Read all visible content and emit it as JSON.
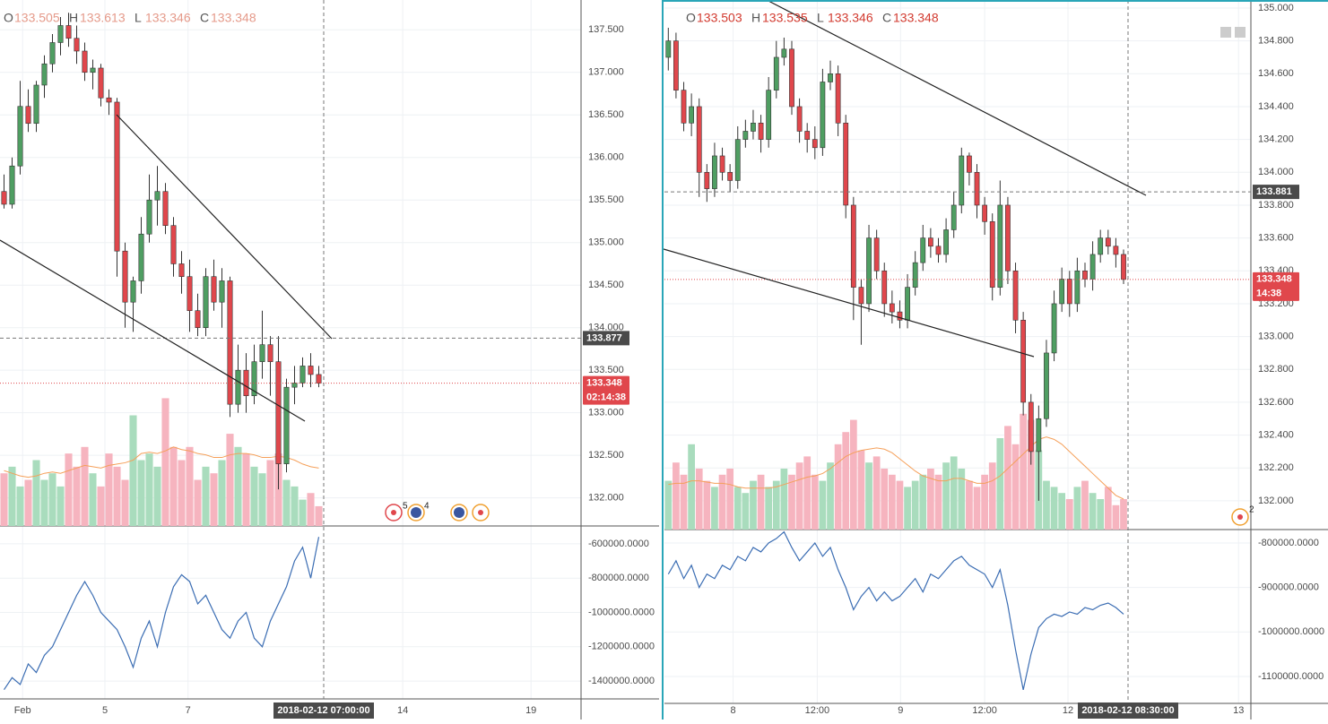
{
  "chart_data": [
    {
      "type": "candlestick",
      "ohlc_header": [
        {
          "label": "O",
          "value": 133.505
        },
        {
          "label": "H",
          "value": 133.613
        },
        {
          "label": "L",
          "value": 133.346
        },
        {
          "label": "C",
          "value": 133.348
        }
      ],
      "xlim": [
        -0.5,
        71.5
      ],
      "xticks": [
        {
          "value": 2.3,
          "label": "Feb"
        },
        {
          "value": 12.5,
          "label": "5"
        },
        {
          "value": 22.8,
          "label": "7"
        },
        {
          "value": 49.4,
          "label": "14"
        },
        {
          "value": 65.3,
          "label": "19"
        }
      ],
      "ylim": [
        131.67,
        137.85
      ],
      "yticks": [
        {
          "value": 132,
          "label": "132.000"
        },
        {
          "value": 132.5,
          "label": "132.500"
        },
        {
          "value": 133,
          "label": "133.000"
        },
        {
          "value": 133.5,
          "label": "133.500"
        },
        {
          "value": 134,
          "label": "134.000"
        },
        {
          "value": 134.5,
          "label": "134.500"
        },
        {
          "value": 135,
          "label": "135.000"
        },
        {
          "value": 135.5,
          "label": "135.500"
        },
        {
          "value": 136,
          "label": "136.000"
        },
        {
          "value": 136.5,
          "label": "136.500"
        },
        {
          "value": 137,
          "label": "137.000"
        },
        {
          "value": 137.5,
          "label": "137.500"
        }
      ],
      "open": [
        135.6,
        135.45,
        135.9,
        136.6,
        136.4,
        136.85,
        137.1,
        137.35,
        137.55,
        137.4,
        137.25,
        137.0,
        137.05,
        136.7,
        136.65,
        134.9,
        134.3,
        134.55,
        135.1,
        135.5,
        135.6,
        135.2,
        134.75,
        134.6,
        134.2,
        134.0,
        134.6,
        134.3,
        134.55,
        133.1,
        133.5,
        133.2,
        133.6,
        133.8,
        133.6,
        132.4,
        133.3,
        133.35,
        133.55,
        133.45
      ],
      "high": [
        135.8,
        136.0,
        136.9,
        136.8,
        136.9,
        137.2,
        137.45,
        137.65,
        137.7,
        137.55,
        137.35,
        137.15,
        137.1,
        136.8,
        136.7,
        135.0,
        134.6,
        135.3,
        135.8,
        135.9,
        135.7,
        135.3,
        134.9,
        134.8,
        134.4,
        134.7,
        134.8,
        134.7,
        134.6,
        133.8,
        133.7,
        133.8,
        134.2,
        133.9,
        133.9,
        133.4,
        133.55,
        133.65,
        133.7,
        133.55
      ],
      "low": [
        135.4,
        135.4,
        135.8,
        136.3,
        136.3,
        136.7,
        137.0,
        137.2,
        137.3,
        137.1,
        136.9,
        136.8,
        136.6,
        136.5,
        134.6,
        134.0,
        133.95,
        134.4,
        135.0,
        135.2,
        135.1,
        134.6,
        134.4,
        133.95,
        133.9,
        133.9,
        134.2,
        134.0,
        132.95,
        133.0,
        133.0,
        133.1,
        133.4,
        133.2,
        132.1,
        132.3,
        133.1,
        133.3,
        133.3,
        133.3
      ],
      "close": [
        135.45,
        135.9,
        136.6,
        136.4,
        136.85,
        137.1,
        137.35,
        137.55,
        137.4,
        137.25,
        137.0,
        137.05,
        136.7,
        136.65,
        134.9,
        134.3,
        134.55,
        135.1,
        135.5,
        135.6,
        135.2,
        134.75,
        134.6,
        134.2,
        134.0,
        134.6,
        134.3,
        134.55,
        133.1,
        133.5,
        133.2,
        133.6,
        133.8,
        133.6,
        132.4,
        133.3,
        133.35,
        133.55,
        133.45,
        133.348
      ],
      "volume_lim": [
        0,
        100
      ],
      "volume": [
        40,
        45,
        30,
        35,
        50,
        35,
        40,
        30,
        55,
        45,
        60,
        40,
        30,
        55,
        45,
        35,
        84,
        50,
        55,
        45,
        97,
        60,
        50,
        60,
        35,
        45,
        40,
        50,
        70,
        60,
        55,
        45,
        40,
        50,
        55,
        35,
        30,
        20,
        25,
        15
      ],
      "volume_ma": [
        42,
        40,
        38,
        37,
        38,
        40,
        41,
        40,
        42,
        44,
        46,
        45,
        44,
        46,
        47,
        48,
        50,
        55,
        56,
        55,
        57,
        60,
        58,
        57,
        55,
        54,
        52,
        52,
        54,
        55,
        55,
        54,
        52,
        52,
        53,
        52,
        50,
        47,
        45,
        44
      ],
      "indicator": {
        "color": "#3b6db3",
        "ylim": [
          -1504000,
          -496000
        ],
        "yticks": [
          {
            "value": -600000,
            "label": "-600000.0000"
          },
          {
            "value": -800000,
            "label": "-800000.0000"
          },
          {
            "value": -1000000,
            "label": "-1000000.0000"
          },
          {
            "value": -1200000,
            "label": "-1200000.0000"
          },
          {
            "value": -1400000,
            "label": "-1400000.0000"
          }
        ],
        "values": [
          -1450000,
          -1380000,
          -1420000,
          -1300000,
          -1350000,
          -1250000,
          -1200000,
          -1100000,
          -1000000,
          -900000,
          -820000,
          -900000,
          -1000000,
          -1050000,
          -1100000,
          -1200000,
          -1320000,
          -1150000,
          -1050000,
          -1200000,
          -1000000,
          -850000,
          -780000,
          -820000,
          -950000,
          -900000,
          -1000000,
          -1100000,
          -1150000,
          -1050000,
          -1000000,
          -1150000,
          -1200000,
          -1050000,
          -950000,
          -850000,
          -700000,
          -620000,
          -800000,
          -560000
        ]
      },
      "crosshair": {
        "price": 133.877,
        "time": "2018-02-12 07:00:00"
      },
      "last_price": {
        "value": 133.348,
        "countdown": "02:14:38"
      },
      "events": [
        5,
        4
      ],
      "colors": {
        "up": "#4f9e62",
        "down": "#e0474c",
        "volume_up": "#a9dcbd",
        "volume_down": "#f6b4bf",
        "volume_ma": "#f5a05a",
        "header": "#e59a8a"
      }
    },
    {
      "type": "candlestick",
      "ohlc_header": [
        {
          "label": "O",
          "value": 133.503
        },
        {
          "label": "H",
          "value": 133.535
        },
        {
          "label": "L",
          "value": 133.346
        },
        {
          "label": "C",
          "value": 133.348
        }
      ],
      "xlim": [
        -0.5,
        75.5
      ],
      "xticks": [
        {
          "value": 8.4,
          "label": "8"
        },
        {
          "value": 19.3,
          "label": "12:00"
        },
        {
          "value": 30.1,
          "label": "9"
        },
        {
          "value": 41.0,
          "label": "12:00"
        },
        {
          "value": 51.8,
          "label": "12"
        },
        {
          "value": 73.9,
          "label": "13"
        }
      ],
      "ylim": [
        131.825,
        135.049
      ],
      "yticks": [
        {
          "value": 132,
          "label": "132.000"
        },
        {
          "value": 132.2,
          "label": "132.200"
        },
        {
          "value": 132.4,
          "label": "132.400"
        },
        {
          "value": 132.6,
          "label": "132.600"
        },
        {
          "value": 132.8,
          "label": "132.800"
        },
        {
          "value": 133,
          "label": "133.000"
        },
        {
          "value": 133.2,
          "label": "133.200"
        },
        {
          "value": 133.4,
          "label": "133.400"
        },
        {
          "value": 133.6,
          "label": "133.600"
        },
        {
          "value": 133.8,
          "label": "133.800"
        },
        {
          "value": 134,
          "label": "134.000"
        },
        {
          "value": 134.2,
          "label": "134.200"
        },
        {
          "value": 134.4,
          "label": "134.400"
        },
        {
          "value": 134.6,
          "label": "134.600"
        },
        {
          "value": 134.8,
          "label": "134.800"
        },
        {
          "value": 135,
          "label": "135.000"
        }
      ],
      "open": [
        134.7,
        134.8,
        134.5,
        134.3,
        134.4,
        134.0,
        133.9,
        134.1,
        134.0,
        133.95,
        134.2,
        134.25,
        134.3,
        134.2,
        134.5,
        134.7,
        134.75,
        134.4,
        134.25,
        134.2,
        134.15,
        134.55,
        134.6,
        134.3,
        133.8,
        133.3,
        133.2,
        133.6,
        133.4,
        133.2,
        133.15,
        133.1,
        133.3,
        133.45,
        133.6,
        133.55,
        133.5,
        133.65,
        133.8,
        134.1,
        134.0,
        133.8,
        133.7,
        133.3,
        133.8,
        133.4,
        133.1,
        132.6,
        132.3,
        132.5,
        132.9,
        133.2,
        133.35,
        133.2,
        133.4,
        133.35,
        133.5,
        133.6,
        133.55,
        133.5
      ],
      "high": [
        134.88,
        134.85,
        134.55,
        134.48,
        134.45,
        134.05,
        134.18,
        134.15,
        134.05,
        134.28,
        134.32,
        134.38,
        134.35,
        134.58,
        134.8,
        134.82,
        134.8,
        134.45,
        134.3,
        134.28,
        134.63,
        134.68,
        134.65,
        134.35,
        133.85,
        133.35,
        133.68,
        133.65,
        133.45,
        133.28,
        133.22,
        133.38,
        133.52,
        133.68,
        133.66,
        133.6,
        133.72,
        133.88,
        134.15,
        134.12,
        134.05,
        133.85,
        133.75,
        133.95,
        133.85,
        133.45,
        133.15,
        132.65,
        132.58,
        132.98,
        133.28,
        133.42,
        133.4,
        133.48,
        133.45,
        133.58,
        133.65,
        133.65,
        133.6,
        133.53
      ],
      "low": [
        134.62,
        134.45,
        134.25,
        134.22,
        133.85,
        133.82,
        133.85,
        133.95,
        133.88,
        133.9,
        134.15,
        134.2,
        134.12,
        134.15,
        134.45,
        134.65,
        134.35,
        134.18,
        134.12,
        134.08,
        134.1,
        134.5,
        134.22,
        133.72,
        133.1,
        132.95,
        133.15,
        133.35,
        133.12,
        133.08,
        133.05,
        133.05,
        133.25,
        133.4,
        133.48,
        133.45,
        133.45,
        133.6,
        133.75,
        133.92,
        133.72,
        133.62,
        133.22,
        133.25,
        133.32,
        133.02,
        132.52,
        132.22,
        132.0,
        132.45,
        132.85,
        133.15,
        133.12,
        133.15,
        133.3,
        133.28,
        133.45,
        133.5,
        133.42,
        133.32
      ],
      "close": [
        134.8,
        134.5,
        134.3,
        134.4,
        134.0,
        133.9,
        134.1,
        134.0,
        133.95,
        134.2,
        134.25,
        134.3,
        134.2,
        134.5,
        134.7,
        134.75,
        134.4,
        134.25,
        134.2,
        134.15,
        134.55,
        134.6,
        134.3,
        133.8,
        133.3,
        133.2,
        133.6,
        133.4,
        133.2,
        133.15,
        133.1,
        133.3,
        133.45,
        133.6,
        133.55,
        133.5,
        133.65,
        133.8,
        134.1,
        134.0,
        133.8,
        133.7,
        133.3,
        133.8,
        133.4,
        133.1,
        132.6,
        132.3,
        132.5,
        132.9,
        133.2,
        133.35,
        133.2,
        133.4,
        133.35,
        133.5,
        133.6,
        133.55,
        133.5,
        133.348
      ],
      "volume_lim": [
        0,
        100
      ],
      "volume": [
        40,
        55,
        45,
        70,
        50,
        40,
        35,
        45,
        50,
        35,
        30,
        40,
        45,
        35,
        40,
        50,
        45,
        55,
        60,
        45,
        40,
        55,
        70,
        80,
        90,
        65,
        55,
        60,
        50,
        45,
        40,
        35,
        40,
        45,
        50,
        45,
        55,
        60,
        50,
        40,
        35,
        45,
        55,
        75,
        85,
        70,
        95,
        90,
        65,
        40,
        35,
        30,
        25,
        35,
        40,
        30,
        25,
        35,
        20,
        25
      ],
      "volume_ma": [
        37,
        38,
        38,
        40,
        40,
        39,
        38,
        38,
        37,
        35,
        34,
        34,
        34,
        34,
        35,
        37,
        39,
        41,
        43,
        44,
        46,
        50,
        55,
        60,
        63,
        65,
        66,
        67,
        66,
        63,
        58,
        53,
        48,
        44,
        42,
        40,
        40,
        42,
        42,
        40,
        38,
        38,
        40,
        44,
        50,
        56,
        62,
        68,
        74,
        76,
        74,
        70,
        64,
        58,
        52,
        46,
        40,
        34,
        28,
        25
      ],
      "indicator": {
        "color": "#3b6db3",
        "ylim": [
          -1160500,
          -769800
        ],
        "yticks": [
          {
            "value": -800000,
            "label": "-800000.0000"
          },
          {
            "value": -900000,
            "label": "-900000.0000"
          },
          {
            "value": -1000000,
            "label": "-1000000.0000"
          },
          {
            "value": -1100000,
            "label": "-1100000.0000"
          }
        ],
        "values": [
          -870000,
          -840000,
          -880000,
          -850000,
          -900000,
          -870000,
          -880000,
          -850000,
          -860000,
          -830000,
          -840000,
          -810000,
          -820000,
          -800000,
          -790000,
          -775000,
          -810000,
          -840000,
          -820000,
          -800000,
          -830000,
          -810000,
          -860000,
          -900000,
          -950000,
          -920000,
          -900000,
          -930000,
          -910000,
          -930000,
          -920000,
          -900000,
          -880000,
          -910000,
          -870000,
          -880000,
          -860000,
          -840000,
          -830000,
          -850000,
          -860000,
          -870000,
          -900000,
          -860000,
          -940000,
          -1040000,
          -1130000,
          -1050000,
          -990000,
          -970000,
          -960000,
          -965000,
          -955000,
          -960000,
          -945000,
          -950000,
          -940000,
          -935000,
          -945000,
          -960000
        ]
      },
      "crosshair": {
        "price": 133.881,
        "time": "2018-02-12 08:30:00"
      },
      "last_price": {
        "value": 133.348,
        "countdown": "14:38"
      },
      "events": [
        2
      ],
      "colors": {
        "up": "#4f9e62",
        "down": "#e0474c",
        "volume_up": "#a9dcbd",
        "volume_down": "#f6b4bf",
        "volume_ma": "#f5a05a",
        "header": "#d23a2f"
      }
    }
  ]
}
